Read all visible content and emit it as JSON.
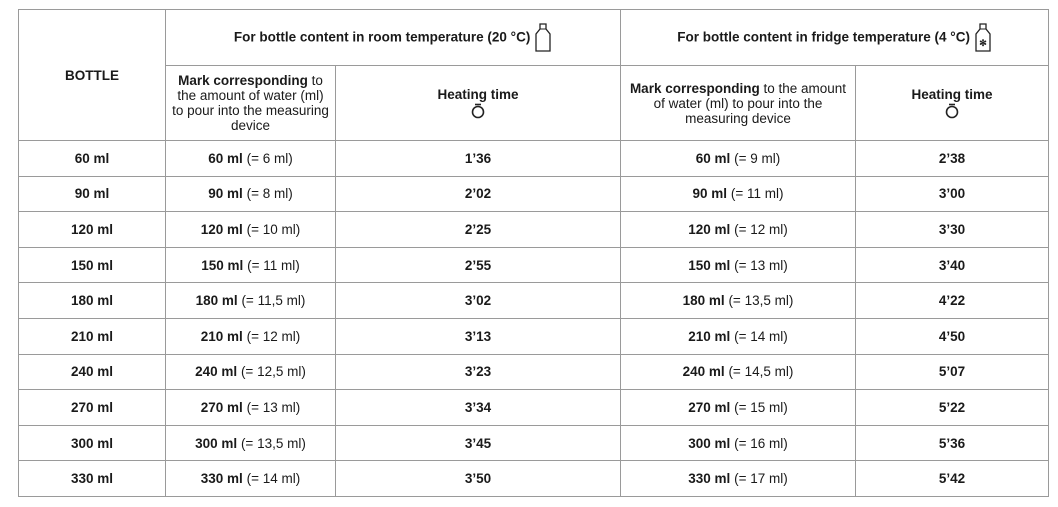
{
  "table": {
    "corner": "BOTTLE",
    "groups": [
      {
        "title": "For bottle content in room temperature  (20 °C)",
        "icon": "bottle"
      },
      {
        "title": "For bottle content in fridge temperature (4 °C)",
        "icon": "bottle-fridge"
      }
    ],
    "subheaders": [
      {
        "bold": "Mark corresponding",
        "rest": "to the amount of water (ml) to pour into the measuring device"
      },
      {
        "bold": "Heating time"
      },
      {
        "bold": "Mark corresponding",
        "rest": "to the amount of water (ml) to pour into the measuring device"
      },
      {
        "bold": "Heating time"
      }
    ],
    "rows": [
      [
        "60 ml",
        "60 ml",
        "(= 6 ml)",
        "1’36",
        "60 ml",
        "(= 9 ml)",
        "2’38"
      ],
      [
        "90 ml",
        "90 ml",
        "(= 8 ml)",
        "2’02",
        "90 ml",
        "(= 11 ml)",
        "3’00"
      ],
      [
        "120 ml",
        "120 ml",
        "(= 10 ml)",
        "2’25",
        "120 ml",
        "(= 12 ml)",
        "3’30"
      ],
      [
        "150 ml",
        "150 ml",
        "(= 11 ml)",
        "2’55",
        "150 ml",
        "(= 13 ml)",
        "3’40"
      ],
      [
        "180 ml",
        "180 ml",
        "(= 11,5 ml)",
        "3’02",
        "180 ml",
        "(= 13,5 ml)",
        "4’22"
      ],
      [
        "210 ml",
        "210 ml",
        "(= 12 ml)",
        "3’13",
        "210 ml",
        "(= 14 ml)",
        "4’50"
      ],
      [
        "240 ml",
        "240 ml",
        "(= 12,5 ml)",
        "3’23",
        "240 ml",
        "(= 14,5 ml)",
        "5’07"
      ],
      [
        "270 ml",
        "270 ml",
        "(= 13 ml)",
        "3’34",
        "270 ml",
        "(= 15 ml)",
        "5’22"
      ],
      [
        "300 ml",
        "300 ml",
        "(= 13,5 ml)",
        "3’45",
        "300 ml",
        "(= 16 ml)",
        "5’36"
      ],
      [
        "330 ml",
        "330 ml",
        "(= 14 ml)",
        "3’50",
        "330 ml",
        "(= 17 ml)",
        "5’42"
      ]
    ]
  }
}
